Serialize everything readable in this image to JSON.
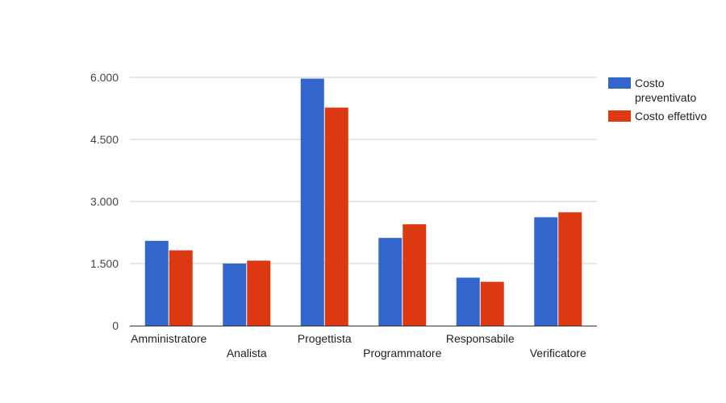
{
  "chart_data": {
    "type": "bar",
    "categories": [
      "Amministratore",
      "Analista",
      "Progettista",
      "Programmatore",
      "Responsabile",
      "Verificatore"
    ],
    "series": [
      {
        "name": "Costo preventivato",
        "color": "#3366cc",
        "values": [
          2050,
          1500,
          5970,
          2120,
          1160,
          2620
        ]
      },
      {
        "name": "Costo effettivo",
        "color": "#dc3912",
        "values": [
          1820,
          1570,
          5270,
          2450,
          1060,
          2740
        ]
      }
    ],
    "yticks": [
      {
        "value": 0,
        "label": "0"
      },
      {
        "value": 1500,
        "label": "1.500"
      },
      {
        "value": 3000,
        "label": "3.000"
      },
      {
        "value": 4500,
        "label": "4.500"
      },
      {
        "value": 6000,
        "label": "6.000"
      }
    ],
    "ylim": [
      0,
      6000
    ],
    "grid": true,
    "legend_position": "right",
    "gridline_color": "#cccccc",
    "axis_color": "#333333"
  }
}
